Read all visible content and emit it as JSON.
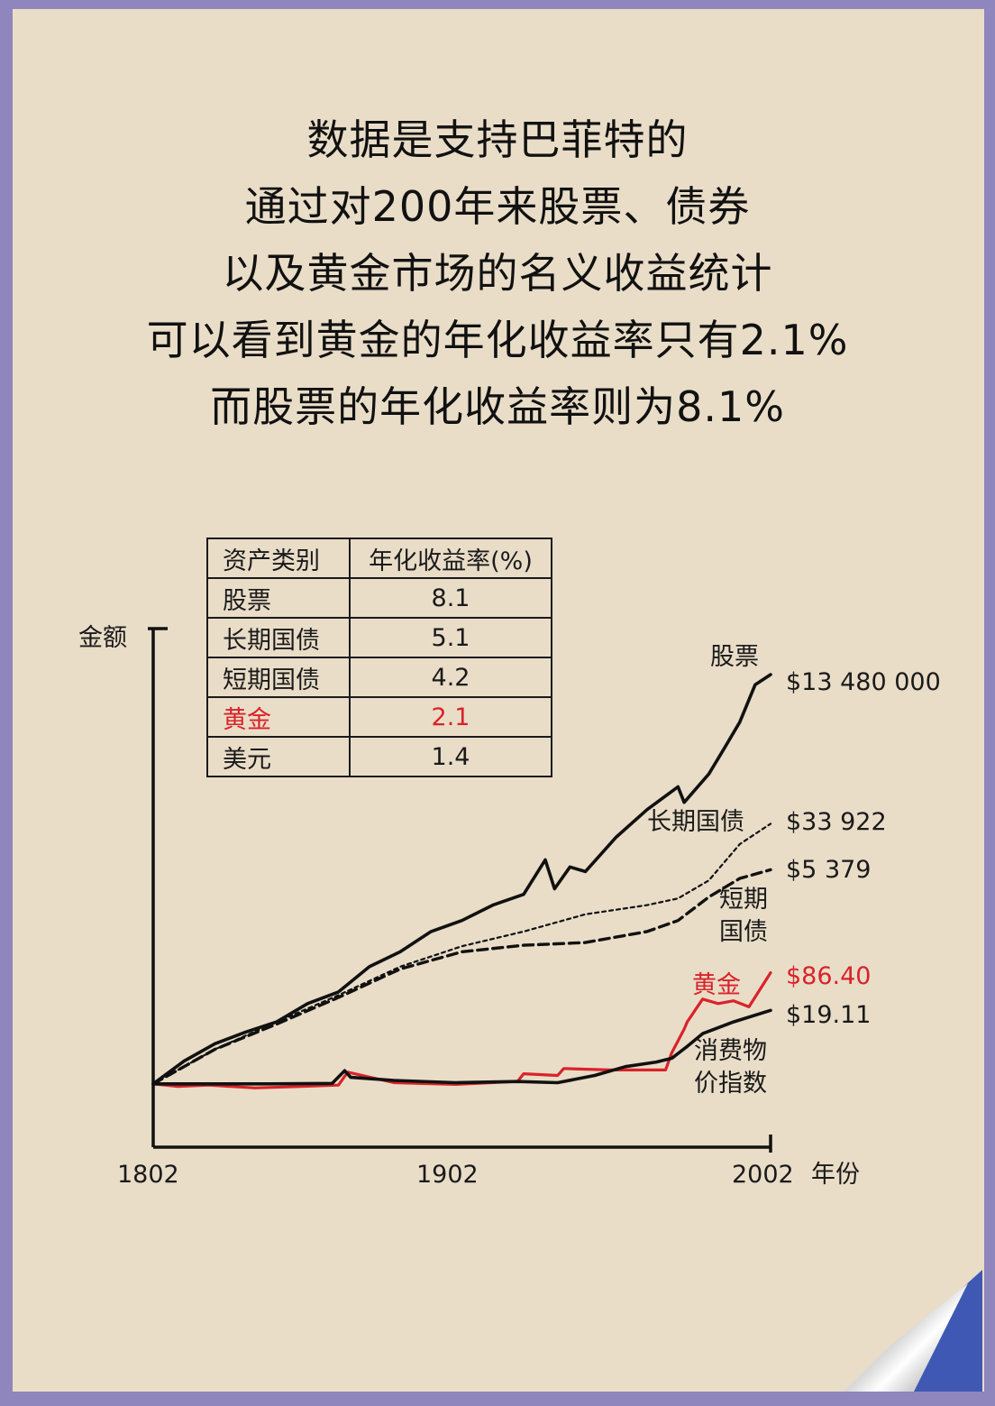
{
  "title_lines": [
    "数据是支持巴菲特的",
    "通过对200年来股票、债券",
    "以及黄金市场的名义收益统计",
    "可以看到黄金的年化收益率只有2.1%",
    "而股票的年化收益率则为8.1%"
  ],
  "table": {
    "headers": [
      "资产类别",
      "年化收益率(%)"
    ],
    "rows": [
      {
        "name": "股票",
        "value": "8.1"
      },
      {
        "name": "长期国债",
        "value": "5.1"
      },
      {
        "name": "短期国债",
        "value": "4.2"
      },
      {
        "name": "黄金",
        "value": "2.1",
        "highlight": true
      },
      {
        "name": "美元",
        "value": "1.4"
      }
    ]
  },
  "colors": {
    "highlight": "#d9232a",
    "ink": "#111111",
    "paper": "#e9ddc8",
    "frame": "#8f86bd",
    "curl": "#3f58b4"
  },
  "chart_data": {
    "type": "line",
    "ylabel": "金额",
    "xlabel": "年份",
    "x_ticks": [
      "1802",
      "1902",
      "2002"
    ],
    "xlim": [
      1802,
      2002
    ],
    "y_scale": "log",
    "grid": false,
    "series": [
      {
        "name": "股票",
        "end_label": "$13 480 000",
        "end_value": 13480000,
        "style": "solid-thick",
        "color": "#111111",
        "x": [
          1802,
          1812,
          1822,
          1832,
          1842,
          1852,
          1862,
          1872,
          1882,
          1892,
          1902,
          1912,
          1922,
          1929,
          1932,
          1937,
          1942,
          1952,
          1962,
          1972,
          1974,
          1982,
          1987,
          1992,
          1997,
          2002
        ],
        "y": [
          1,
          2.5,
          5,
          8,
          12,
          25,
          40,
          110,
          200,
          450,
          700,
          1300,
          2000,
          8000,
          2500,
          6000,
          5000,
          20000,
          60000,
          150000,
          80000,
          250000,
          700000,
          2000000,
          9000000,
          13480000
        ]
      },
      {
        "name": "长期国债",
        "end_label": "$33 922",
        "end_value": 33922,
        "style": "dotted",
        "color": "#111111",
        "x": [
          1802,
          1822,
          1842,
          1862,
          1882,
          1902,
          1922,
          1942,
          1962,
          1972,
          1982,
          1992,
          2002
        ],
        "y": [
          1,
          4,
          12,
          35,
          110,
          250,
          450,
          900,
          1300,
          1700,
          3500,
          15000,
          33922
        ]
      },
      {
        "name": "短期国债",
        "end_label": "$5 379",
        "end_value": 5379,
        "style": "dashed",
        "color": "#111111",
        "x": [
          1802,
          1822,
          1842,
          1862,
          1882,
          1902,
          1922,
          1942,
          1962,
          1972,
          1982,
          1992,
          2002
        ],
        "y": [
          1,
          4,
          11,
          32,
          100,
          200,
          260,
          290,
          450,
          700,
          1800,
          3800,
          5379
        ]
      },
      {
        "name": "黄金",
        "end_label": "$86.40",
        "end_value": 86.4,
        "style": "solid",
        "color": "#d9232a",
        "x": [
          1802,
          1810,
          1820,
          1835,
          1850,
          1862,
          1865,
          1880,
          1900,
          1920,
          1922,
          1933,
          1935,
          1950,
          1968,
          1970,
          1974,
          1975,
          1980,
          1985,
          1990,
          1995,
          2002
        ],
        "y": [
          1,
          0.9,
          0.95,
          0.85,
          0.9,
          0.95,
          1.6,
          1.05,
          0.98,
          1.1,
          1.5,
          1.4,
          1.85,
          1.75,
          1.75,
          3.5,
          9,
          12,
          30,
          25,
          28,
          22,
          86.4
        ]
      },
      {
        "name": "消费物价指数",
        "end_label": "$19.11",
        "end_value": 19.11,
        "style": "solid-thick",
        "color": "#111111",
        "x": [
          1802,
          1820,
          1840,
          1860,
          1864,
          1866,
          1880,
          1900,
          1920,
          1933,
          1945,
          1955,
          1965,
          1970,
          1975,
          1980,
          1990,
          2002
        ],
        "y": [
          1,
          1,
          1,
          1.02,
          1.7,
          1.3,
          1.15,
          1.05,
          1.1,
          1.05,
          1.4,
          2.0,
          2.4,
          2.8,
          4.5,
          7.5,
          12,
          19.11
        ]
      }
    ]
  }
}
